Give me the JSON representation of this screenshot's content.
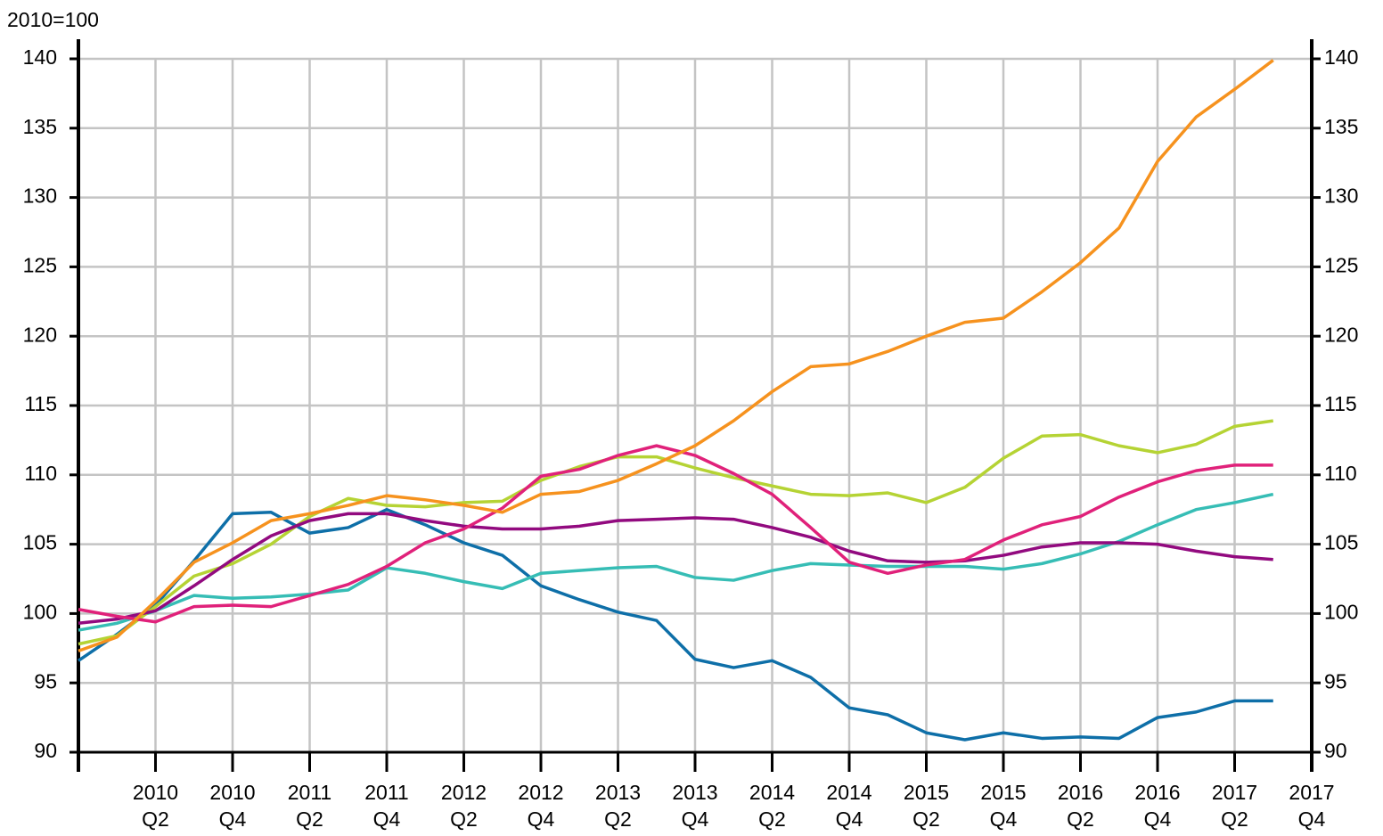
{
  "chart_data": {
    "type": "line",
    "y_axis_label": "2010=100",
    "categories": [
      null,
      "2010 Q2",
      null,
      "2010 Q4",
      null,
      "2011 Q2",
      null,
      "2011 Q4",
      null,
      "2012 Q2",
      null,
      "2012 Q4",
      null,
      "2013 Q2",
      null,
      "2013 Q4",
      null,
      "2014 Q2",
      null,
      "2014 Q4",
      null,
      "2015 Q2",
      null,
      "2015 Q4",
      null,
      "2016 Q2",
      null,
      "2016 Q4",
      null,
      "2017 Q2",
      null,
      "2017 Q4"
    ],
    "series": [
      {
        "color": "#0e6fa8",
        "values": [
          96.6,
          98.5,
          100.6,
          103.8,
          107.2,
          107.3,
          105.8,
          106.2,
          107.5,
          106.4,
          105.1,
          104.2,
          102.0,
          101.0,
          100.1,
          99.5,
          96.7,
          96.1,
          96.6,
          95.4,
          93.2,
          92.7,
          91.4,
          90.9,
          91.4,
          91.0,
          91.1,
          91.0,
          92.5,
          92.9,
          93.7,
          93.7
        ]
      },
      {
        "color": "#36bdb5",
        "values": [
          98.8,
          99.3,
          100.2,
          101.3,
          101.1,
          101.2,
          101.4,
          101.7,
          103.3,
          102.9,
          102.3,
          101.8,
          102.9,
          103.1,
          103.3,
          103.4,
          102.6,
          102.4,
          103.1,
          103.6,
          103.5,
          103.4,
          103.4,
          103.4,
          103.2,
          103.6,
          104.3,
          105.2,
          106.4,
          107.5,
          108.0,
          108.6
        ]
      },
      {
        "color": "#b5d334",
        "values": [
          97.8,
          98.4,
          100.5,
          102.7,
          103.6,
          105.0,
          107.0,
          108.3,
          107.8,
          107.7,
          108.0,
          108.1,
          109.6,
          110.6,
          111.3,
          111.3,
          110.5,
          109.8,
          109.2,
          108.6,
          108.5,
          108.7,
          108.0,
          109.1,
          111.2,
          112.8,
          112.9,
          112.1,
          111.6,
          112.2,
          113.5,
          113.9
        ]
      },
      {
        "color": "#920a7f",
        "values": [
          99.3,
          99.6,
          100.2,
          102.0,
          103.9,
          105.6,
          106.7,
          107.2,
          107.2,
          106.7,
          106.3,
          106.1,
          106.1,
          106.3,
          106.7,
          106.8,
          106.9,
          106.8,
          106.2,
          105.5,
          104.5,
          103.8,
          103.7,
          103.8,
          104.2,
          104.8,
          105.1,
          105.1,
          105.0,
          104.5,
          104.1,
          103.9
        ]
      },
      {
        "color": "#e0217a",
        "values": [
          100.3,
          99.8,
          99.4,
          100.5,
          100.6,
          100.5,
          101.3,
          102.1,
          103.4,
          105.1,
          106.1,
          107.6,
          109.9,
          110.4,
          111.4,
          112.1,
          111.4,
          110.1,
          108.6,
          106.2,
          103.7,
          102.9,
          103.5,
          103.9,
          105.3,
          106.4,
          107.0,
          108.4,
          109.5,
          110.3,
          110.7,
          110.7
        ]
      },
      {
        "color": "#f6921e",
        "values": [
          97.3,
          98.3,
          100.9,
          103.7,
          105.1,
          106.7,
          107.2,
          107.8,
          108.5,
          108.2,
          107.8,
          107.3,
          108.6,
          108.8,
          109.6,
          110.8,
          112.1,
          113.9,
          116.0,
          117.8,
          118.0,
          118.9,
          120.0,
          121.0,
          121.3,
          123.2,
          125.3,
          127.8,
          132.6,
          135.8,
          137.8,
          139.9
        ]
      }
    ],
    "ylim": [
      90,
      140
    ],
    "yticks": [
      90,
      95,
      100,
      105,
      110,
      115,
      120,
      125,
      130,
      135,
      140
    ],
    "y2lim": [
      90,
      140
    ],
    "y2ticks": [
      90,
      95,
      100,
      105,
      110,
      115,
      120,
      125,
      130,
      135,
      140
    ],
    "grid": true
  }
}
